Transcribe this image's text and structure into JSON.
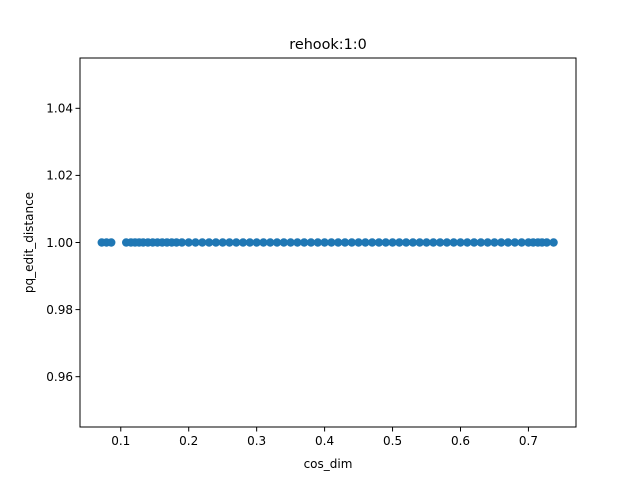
{
  "chart_data": {
    "type": "scatter",
    "title": "rehook:1:0",
    "xlabel": "cos_dim",
    "ylabel": "pq_edit_distance",
    "xlim": [
      0.04,
      0.77
    ],
    "ylim": [
      0.945,
      1.055
    ],
    "xticks": [
      0.1,
      0.2,
      0.3,
      0.4,
      0.5,
      0.6,
      0.7
    ],
    "xtick_labels": [
      "0.1",
      "0.2",
      "0.3",
      "0.4",
      "0.5",
      "0.6",
      "0.7"
    ],
    "yticks": [
      0.96,
      0.98,
      1.0,
      1.02,
      1.04
    ],
    "ytick_labels": [
      "0.96",
      "0.98",
      "1.00",
      "1.02",
      "1.04"
    ],
    "grid": false,
    "color": "#1f77b4",
    "series": [
      {
        "x": [
          0.072,
          0.079,
          0.086,
          0.108,
          0.115,
          0.121,
          0.127,
          0.133,
          0.14,
          0.147,
          0.154,
          0.161,
          0.168,
          0.175,
          0.182,
          0.19,
          0.2,
          0.21,
          0.22,
          0.23,
          0.24,
          0.25,
          0.26,
          0.27,
          0.28,
          0.29,
          0.3,
          0.31,
          0.32,
          0.33,
          0.34,
          0.35,
          0.36,
          0.37,
          0.38,
          0.39,
          0.4,
          0.41,
          0.42,
          0.43,
          0.44,
          0.45,
          0.46,
          0.47,
          0.48,
          0.49,
          0.5,
          0.51,
          0.52,
          0.53,
          0.54,
          0.55,
          0.56,
          0.57,
          0.58,
          0.59,
          0.6,
          0.61,
          0.62,
          0.63,
          0.64,
          0.65,
          0.66,
          0.67,
          0.68,
          0.69,
          0.7,
          0.707,
          0.714,
          0.72,
          0.727,
          0.737
        ],
        "y": [
          1.0,
          1.0,
          1.0,
          1.0,
          1.0,
          1.0,
          1.0,
          1.0,
          1.0,
          1.0,
          1.0,
          1.0,
          1.0,
          1.0,
          1.0,
          1.0,
          1.0,
          1.0,
          1.0,
          1.0,
          1.0,
          1.0,
          1.0,
          1.0,
          1.0,
          1.0,
          1.0,
          1.0,
          1.0,
          1.0,
          1.0,
          1.0,
          1.0,
          1.0,
          1.0,
          1.0,
          1.0,
          1.0,
          1.0,
          1.0,
          1.0,
          1.0,
          1.0,
          1.0,
          1.0,
          1.0,
          1.0,
          1.0,
          1.0,
          1.0,
          1.0,
          1.0,
          1.0,
          1.0,
          1.0,
          1.0,
          1.0,
          1.0,
          1.0,
          1.0,
          1.0,
          1.0,
          1.0,
          1.0,
          1.0,
          1.0,
          1.0,
          1.0,
          1.0,
          1.0,
          1.0,
          1.0
        ]
      }
    ]
  }
}
